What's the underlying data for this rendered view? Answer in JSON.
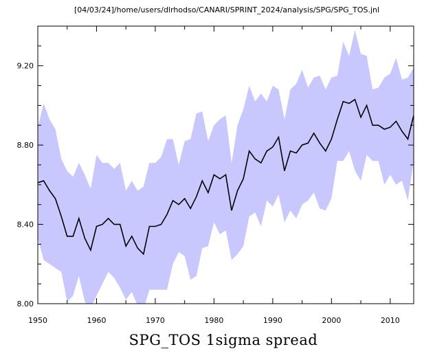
{
  "header_path": "[04/03/24]/home/users/dlrhodso/CANARI/SPRINT_2024/analysis/SPG/SPG_TOS.jnl",
  "chart_data": {
    "type": "line",
    "title": "SPG_TOS 1sigma spread",
    "xlabel": "",
    "ylabel": "",
    "xlim": [
      1950,
      2014
    ],
    "ylim": [
      8.0,
      9.4
    ],
    "x_tick_labels": [
      "1950",
      "1960",
      "1970",
      "1980",
      "1990",
      "2000",
      "2010"
    ],
    "y_tick_labels": [
      "8.00",
      "8.40",
      "8.80",
      "9.20"
    ],
    "grid": false,
    "legend": "none",
    "colors": {
      "line": "#000000",
      "band": "#c8c8ff"
    },
    "x": [
      1950,
      1951,
      1952,
      1953,
      1954,
      1955,
      1956,
      1957,
      1958,
      1959,
      1960,
      1961,
      1962,
      1963,
      1964,
      1965,
      1966,
      1967,
      1968,
      1969,
      1970,
      1971,
      1972,
      1973,
      1974,
      1975,
      1976,
      1977,
      1978,
      1979,
      1980,
      1981,
      1982,
      1983,
      1984,
      1985,
      1986,
      1987,
      1988,
      1989,
      1990,
      1991,
      1992,
      1993,
      1994,
      1995,
      1996,
      1997,
      1998,
      1999,
      2000,
      2001,
      2002,
      2003,
      2004,
      2005,
      2006,
      2007,
      2008,
      2009,
      2010,
      2011,
      2012,
      2013,
      2014
    ],
    "mean": [
      8.61,
      8.62,
      8.57,
      8.53,
      8.44,
      8.34,
      8.34,
      8.43,
      8.33,
      8.27,
      8.39,
      8.4,
      8.43,
      8.4,
      8.4,
      8.29,
      8.34,
      8.28,
      8.25,
      8.39,
      8.39,
      8.4,
      8.45,
      8.52,
      8.5,
      8.53,
      8.48,
      8.54,
      8.62,
      8.56,
      8.65,
      8.63,
      8.65,
      8.47,
      8.57,
      8.63,
      8.77,
      8.73,
      8.71,
      8.77,
      8.79,
      8.84,
      8.67,
      8.77,
      8.76,
      8.8,
      8.81,
      8.86,
      8.81,
      8.77,
      8.83,
      8.93,
      9.02,
      9.01,
      9.03,
      8.94,
      9.0,
      8.9,
      8.9,
      8.88,
      8.89,
      8.92,
      8.87,
      8.83,
      8.95
    ],
    "upper": [
      8.89,
      9.01,
      8.93,
      8.88,
      8.73,
      8.67,
      8.64,
      8.71,
      8.65,
      8.58,
      8.75,
      8.71,
      8.71,
      8.68,
      8.71,
      8.57,
      8.62,
      8.57,
      8.59,
      8.71,
      8.71,
      8.74,
      8.83,
      8.83,
      8.7,
      8.82,
      8.83,
      8.96,
      8.97,
      8.82,
      8.9,
      8.93,
      8.95,
      8.71,
      8.9,
      8.98,
      9.1,
      9.02,
      9.06,
      9.02,
      9.1,
      9.08,
      8.93,
      9.08,
      9.11,
      9.18,
      9.09,
      9.14,
      9.15,
      9.08,
      9.14,
      9.15,
      9.32,
      9.25,
      9.38,
      9.26,
      9.25,
      9.08,
      9.09,
      9.14,
      9.16,
      9.24,
      9.13,
      9.14,
      9.19
    ],
    "lower": [
      8.33,
      8.22,
      8.2,
      8.18,
      8.16,
      8.01,
      8.04,
      8.14,
      8.01,
      7.98,
      8.04,
      8.1,
      8.16,
      8.13,
      8.08,
      8.02,
      8.06,
      7.99,
      7.97,
      8.07,
      8.07,
      8.07,
      8.07,
      8.2,
      8.26,
      8.24,
      8.12,
      8.14,
      8.28,
      8.29,
      8.41,
      8.35,
      8.37,
      8.22,
      8.25,
      8.29,
      8.44,
      8.46,
      8.39,
      8.52,
      8.49,
      8.55,
      8.41,
      8.47,
      8.43,
      8.5,
      8.52,
      8.56,
      8.48,
      8.47,
      8.53,
      8.72,
      8.72,
      8.77,
      8.67,
      8.62,
      8.75,
      8.72,
      8.72,
      8.6,
      8.65,
      8.6,
      8.62,
      8.52,
      8.72
    ]
  }
}
